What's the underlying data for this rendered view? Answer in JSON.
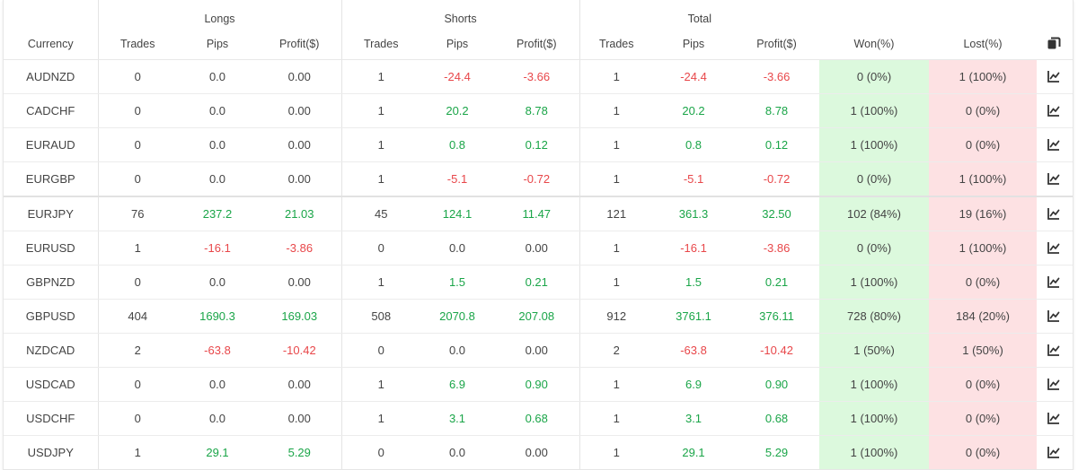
{
  "groups": {
    "longs": "Longs",
    "shorts": "Shorts",
    "total": "Total"
  },
  "columns": {
    "currency": "Currency",
    "long_trades": "Trades",
    "long_pips": "Pips",
    "long_profit": "Profit($)",
    "short_trades": "Trades",
    "short_pips": "Pips",
    "short_profit": "Profit($)",
    "total_trades": "Trades",
    "total_pips": "Pips",
    "total_profit": "Profit($)",
    "won": "Won(%)",
    "lost": "Lost(%)"
  },
  "header_icon": "copy-icon",
  "row_icon": "chart-icon",
  "colors": {
    "positive": "#1aa548",
    "negative": "#e8474a",
    "won_bg": "#dcf9dd",
    "lost_bg": "#fde1e3"
  },
  "rows": [
    {
      "currency": "AUDNZD",
      "long_trades": "0",
      "long_pips": "0.0",
      "long_profit": "0.00",
      "short_trades": "1",
      "short_pips": "-24.4",
      "short_profit": "-3.66",
      "total_trades": "1",
      "total_pips": "-24.4",
      "total_profit": "-3.66",
      "won": "0 (0%)",
      "lost": "1 (100%)"
    },
    {
      "currency": "CADCHF",
      "long_trades": "0",
      "long_pips": "0.0",
      "long_profit": "0.00",
      "short_trades": "1",
      "short_pips": "20.2",
      "short_profit": "8.78",
      "total_trades": "1",
      "total_pips": "20.2",
      "total_profit": "8.78",
      "won": "1 (100%)",
      "lost": "0 (0%)"
    },
    {
      "currency": "EURAUD",
      "long_trades": "0",
      "long_pips": "0.0",
      "long_profit": "0.00",
      "short_trades": "1",
      "short_pips": "0.8",
      "short_profit": "0.12",
      "total_trades": "1",
      "total_pips": "0.8",
      "total_profit": "0.12",
      "won": "1 (100%)",
      "lost": "0 (0%)"
    },
    {
      "currency": "EURGBP",
      "long_trades": "0",
      "long_pips": "0.0",
      "long_profit": "0.00",
      "short_trades": "1",
      "short_pips": "-5.1",
      "short_profit": "-0.72",
      "total_trades": "1",
      "total_pips": "-5.1",
      "total_profit": "-0.72",
      "won": "0 (0%)",
      "lost": "1 (100%)"
    },
    {
      "currency": "EURJPY",
      "long_trades": "76",
      "long_pips": "237.2",
      "long_profit": "21.03",
      "short_trades": "45",
      "short_pips": "124.1",
      "short_profit": "11.47",
      "total_trades": "121",
      "total_pips": "361.3",
      "total_profit": "32.50",
      "won": "102 (84%)",
      "lost": "19 (16%)"
    },
    {
      "currency": "EURUSD",
      "long_trades": "1",
      "long_pips": "-16.1",
      "long_profit": "-3.86",
      "short_trades": "0",
      "short_pips": "0.0",
      "short_profit": "0.00",
      "total_trades": "1",
      "total_pips": "-16.1",
      "total_profit": "-3.86",
      "won": "0 (0%)",
      "lost": "1 (100%)"
    },
    {
      "currency": "GBPNZD",
      "long_trades": "0",
      "long_pips": "0.0",
      "long_profit": "0.00",
      "short_trades": "1",
      "short_pips": "1.5",
      "short_profit": "0.21",
      "total_trades": "1",
      "total_pips": "1.5",
      "total_profit": "0.21",
      "won": "1 (100%)",
      "lost": "0 (0%)"
    },
    {
      "currency": "GBPUSD",
      "long_trades": "404",
      "long_pips": "1690.3",
      "long_profit": "169.03",
      "short_trades": "508",
      "short_pips": "2070.8",
      "short_profit": "207.08",
      "total_trades": "912",
      "total_pips": "3761.1",
      "total_profit": "376.11",
      "won": "728 (80%)",
      "lost": "184 (20%)"
    },
    {
      "currency": "NZDCAD",
      "long_trades": "2",
      "long_pips": "-63.8",
      "long_profit": "-10.42",
      "short_trades": "0",
      "short_pips": "0.0",
      "short_profit": "0.00",
      "total_trades": "2",
      "total_pips": "-63.8",
      "total_profit": "-10.42",
      "won": "1 (50%)",
      "lost": "1 (50%)"
    },
    {
      "currency": "USDCAD",
      "long_trades": "0",
      "long_pips": "0.0",
      "long_profit": "0.00",
      "short_trades": "1",
      "short_pips": "6.9",
      "short_profit": "0.90",
      "total_trades": "1",
      "total_pips": "6.9",
      "total_profit": "0.90",
      "won": "1 (100%)",
      "lost": "0 (0%)"
    },
    {
      "currency": "USDCHF",
      "long_trades": "0",
      "long_pips": "0.0",
      "long_profit": "0.00",
      "short_trades": "1",
      "short_pips": "3.1",
      "short_profit": "0.68",
      "total_trades": "1",
      "total_pips": "3.1",
      "total_profit": "0.68",
      "won": "1 (100%)",
      "lost": "0 (0%)"
    },
    {
      "currency": "USDJPY",
      "long_trades": "1",
      "long_pips": "29.1",
      "long_profit": "5.29",
      "short_trades": "0",
      "short_pips": "0.0",
      "short_profit": "0.00",
      "total_trades": "1",
      "total_pips": "29.1",
      "total_profit": "5.29",
      "won": "1 (100%)",
      "lost": "0 (0%)"
    }
  ]
}
